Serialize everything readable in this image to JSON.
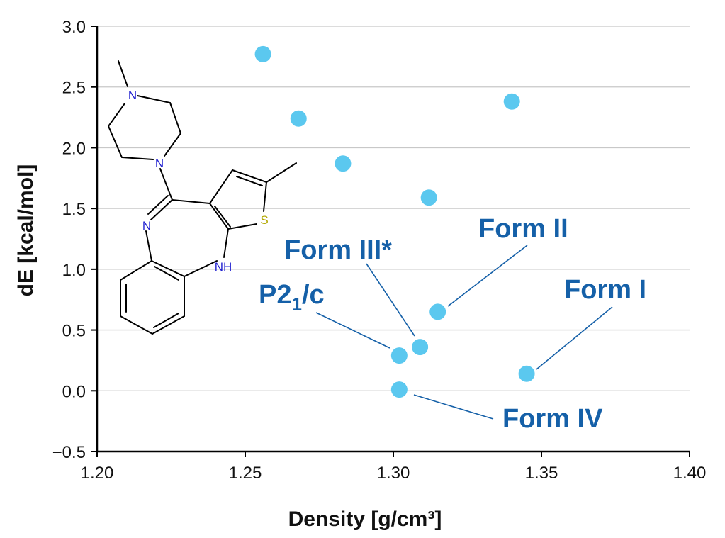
{
  "chart_data": {
    "type": "scatter",
    "xlabel": "Density [g/cm³]",
    "ylabel": "dE [kcal/mol]",
    "xlim": [
      1.2,
      1.4
    ],
    "ylim": [
      -0.5,
      3.0
    ],
    "x_ticks": [
      "1.20",
      "1.25",
      "1.30",
      "1.35",
      "1.40"
    ],
    "y_ticks": [
      "−0.5",
      "0.0",
      "0.5",
      "1.0",
      "1.5",
      "2.0",
      "2.5",
      "3.0"
    ],
    "grid": "horizontal",
    "point_color": "#5bc8ef",
    "label_color": "#1560a8",
    "series": [
      {
        "points": [
          {
            "x": 1.256,
            "y": 2.77
          },
          {
            "x": 1.268,
            "y": 2.24
          },
          {
            "x": 1.283,
            "y": 1.87
          },
          {
            "x": 1.312,
            "y": 1.59
          },
          {
            "x": 1.34,
            "y": 2.38
          },
          {
            "x": 1.315,
            "y": 0.65
          },
          {
            "x": 1.309,
            "y": 0.36
          },
          {
            "x": 1.302,
            "y": 0.29
          },
          {
            "x": 1.345,
            "y": 0.14
          },
          {
            "x": 1.302,
            "y": 0.01
          }
        ]
      }
    ],
    "annotations": [
      {
        "text": "Form II",
        "x": 1.315,
        "y": 0.65
      },
      {
        "text": "Form III*",
        "x": 1.309,
        "y": 0.36
      },
      {
        "text": "P2",
        "subscript": "1",
        "suffix": "/c",
        "x": 1.302,
        "y": 0.29
      },
      {
        "text": "Form I",
        "x": 1.345,
        "y": 0.14
      },
      {
        "text": "Form IV",
        "x": 1.302,
        "y": 0.01
      }
    ],
    "inset": {
      "kind": "molecular-structure",
      "atom_labels": [
        "N",
        "N",
        "N",
        "S",
        "NH"
      ]
    }
  }
}
